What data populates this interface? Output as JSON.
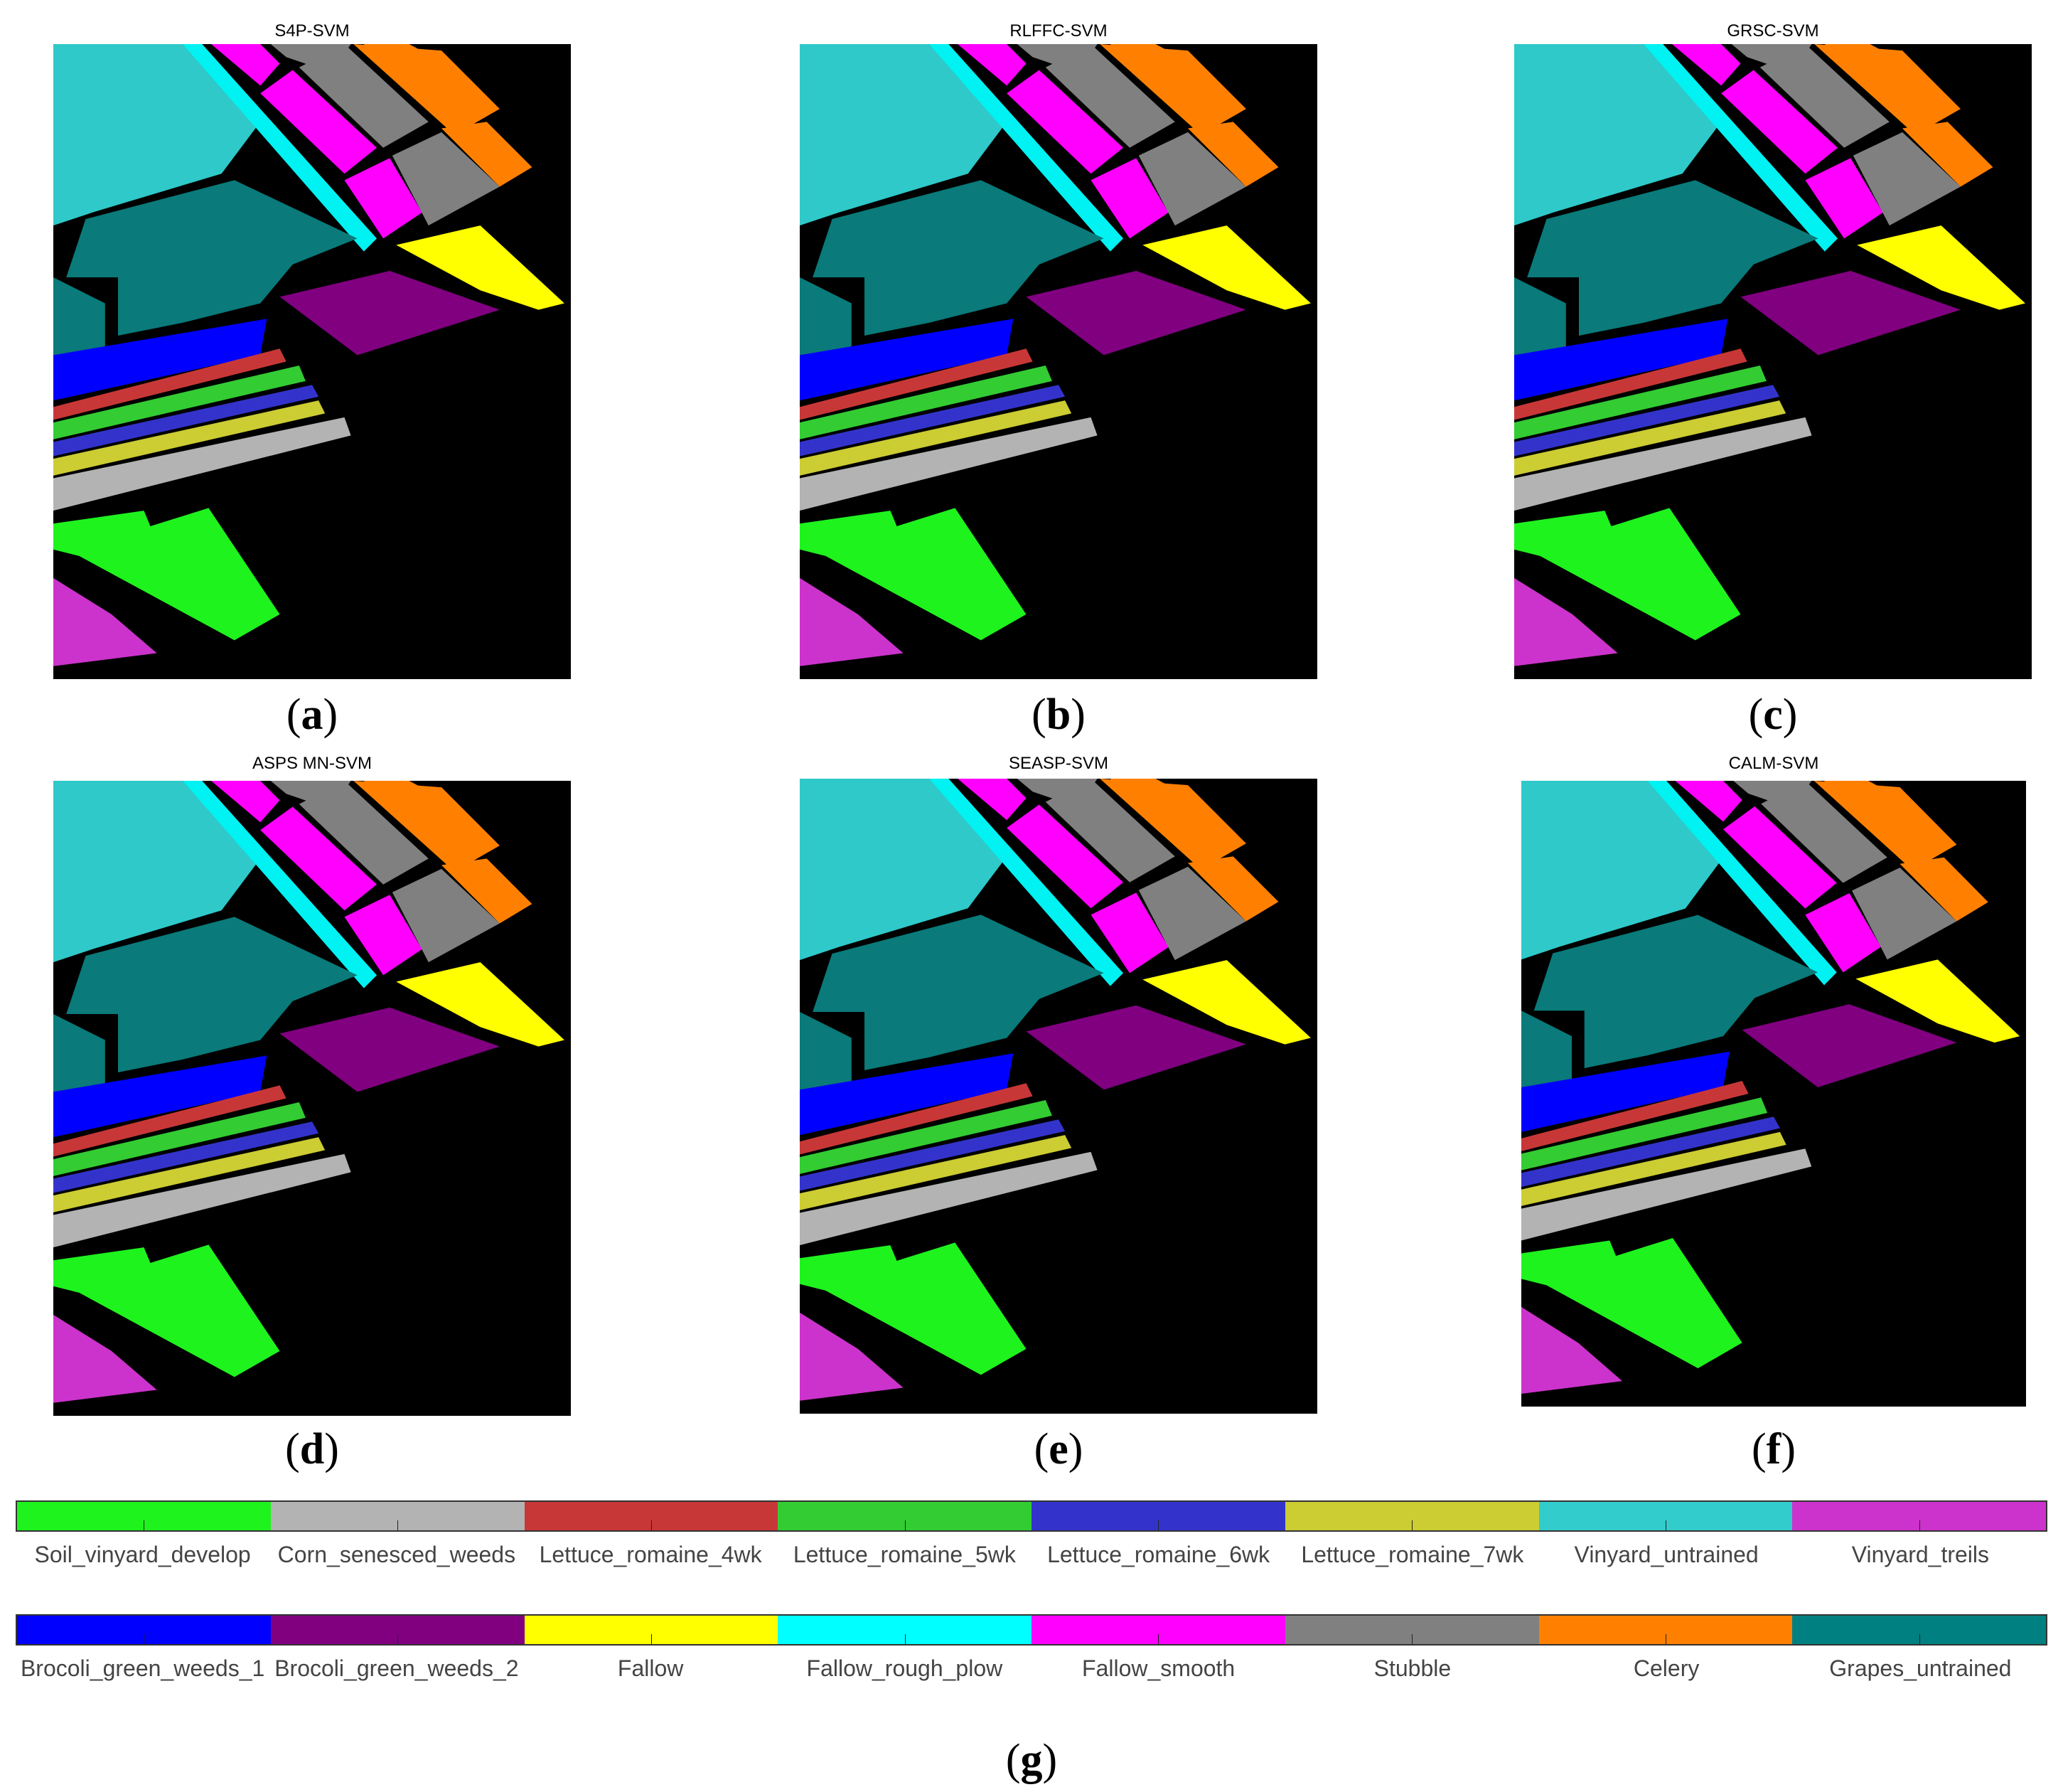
{
  "panels": [
    {
      "title": "S4P-SVM",
      "label": "a"
    },
    {
      "title": "RLFFC-SVM",
      "label": "b"
    },
    {
      "title": "GRSC-SVM",
      "label": "c"
    },
    {
      "title": "ASPS MN-SVM",
      "label": "d"
    },
    {
      "title": "SEASP-SVM",
      "label": "e"
    },
    {
      "title": "CALM-SVM",
      "label": "f"
    }
  ],
  "legend": {
    "row1": [
      {
        "name": "Soil_vinyard_develop",
        "color": "#1ef31e"
      },
      {
        "name": "Corn_senesced_weeds",
        "color": "#b3b3b3"
      },
      {
        "name": "Lettuce_romaine_4wk",
        "color": "#c83737"
      },
      {
        "name": "Lettuce_romaine_5wk",
        "color": "#33cc33"
      },
      {
        "name": "Lettuce_romaine_6wk",
        "color": "#3333cc"
      },
      {
        "name": "Lettuce_romaine_7wk",
        "color": "#cccc33"
      },
      {
        "name": "Vinyard_untrained",
        "color": "#33cccc"
      },
      {
        "name": "Vinyard_treils",
        "color": "#cc33cc"
      }
    ],
    "row2": [
      {
        "name": "Brocoli_green_weeds_1",
        "color": "#0000ff"
      },
      {
        "name": "Brocoli_green_weeds_2",
        "color": "#800080"
      },
      {
        "name": "Fallow",
        "color": "#ffff00"
      },
      {
        "name": "Fallow_rough_plow",
        "color": "#00ffff"
      },
      {
        "name": "Fallow_smooth",
        "color": "#ff00ff"
      },
      {
        "name": "Stubble",
        "color": "#808080"
      },
      {
        "name": "Celery",
        "color": "#ff8000"
      },
      {
        "name": "Grapes_untrained",
        "color": "#008080"
      }
    ],
    "caption": "g"
  }
}
